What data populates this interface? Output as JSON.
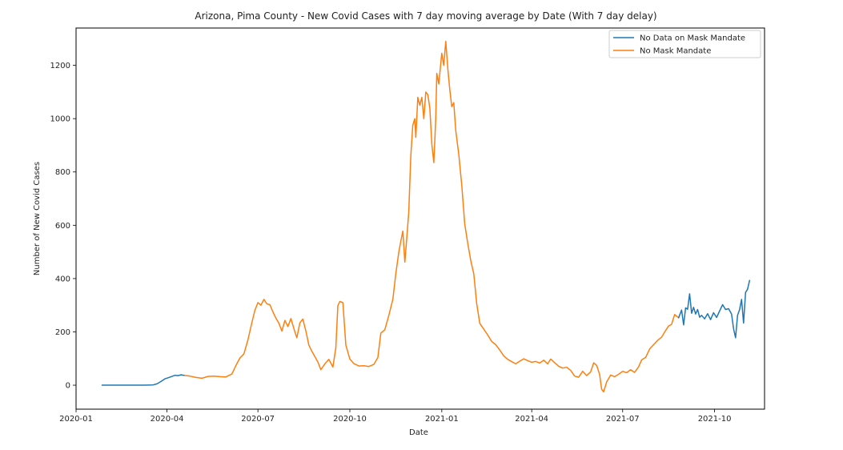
{
  "chart_data": {
    "type": "line",
    "title": "Arizona, Pima County - New Covid Cases with 7 day moving average by Date (With 7 day delay)",
    "xlabel": "Date",
    "ylabel": "Number of New Covid Cases",
    "x_type": "date",
    "xlim": [
      "2020-01-01",
      "2021-11-20"
    ],
    "ylim": [
      -90,
      1340
    ],
    "x_ticks": [
      "2020-01-01",
      "2020-04-01",
      "2020-07-01",
      "2020-10-01",
      "2021-01-01",
      "2021-04-01",
      "2021-07-01",
      "2021-10-01"
    ],
    "x_tick_labels": [
      "2020-01",
      "2020-04",
      "2020-07",
      "2020-10",
      "2021-01",
      "2021-04",
      "2021-07",
      "2021-10"
    ],
    "y_ticks": [
      0,
      200,
      400,
      600,
      800,
      1000,
      1200
    ],
    "y_tick_labels": [
      "0",
      "200",
      "400",
      "600",
      "800",
      "1000",
      "1200"
    ],
    "grid": false,
    "legend_position": "top-right",
    "series": [
      {
        "name": "No Data on Mask Mandate",
        "color": "#1f77b4",
        "segments": [
          [
            [
              "2020-01-27",
              0
            ],
            [
              "2020-02-10",
              0
            ],
            [
              "2020-02-25",
              0
            ],
            [
              "2020-03-10",
              0
            ],
            [
              "2020-03-18",
              1
            ],
            [
              "2020-03-22",
              5
            ],
            [
              "2020-03-26",
              14
            ],
            [
              "2020-03-30",
              24
            ],
            [
              "2020-04-03",
              29
            ],
            [
              "2020-04-06",
              33
            ],
            [
              "2020-04-09",
              37
            ],
            [
              "2020-04-12",
              36
            ],
            [
              "2020-04-15",
              39
            ],
            [
              "2020-04-18",
              37
            ]
          ],
          [
            [
              "2021-08-26",
              253
            ],
            [
              "2021-08-29",
              282
            ],
            [
              "2021-08-31",
              226
            ],
            [
              "2021-09-02",
              290
            ],
            [
              "2021-09-04",
              285
            ],
            [
              "2021-09-06",
              343
            ],
            [
              "2021-09-08",
              270
            ],
            [
              "2021-09-10",
              292
            ],
            [
              "2021-09-12",
              267
            ],
            [
              "2021-09-14",
              284
            ],
            [
              "2021-09-16",
              255
            ],
            [
              "2021-09-18",
              262
            ],
            [
              "2021-09-21",
              249
            ],
            [
              "2021-09-24",
              268
            ],
            [
              "2021-09-27",
              246
            ],
            [
              "2021-09-30",
              272
            ],
            [
              "2021-10-03",
              254
            ],
            [
              "2021-10-06",
              278
            ],
            [
              "2021-10-09",
              302
            ],
            [
              "2021-10-12",
              284
            ],
            [
              "2021-10-15",
              287
            ],
            [
              "2021-10-18",
              267
            ],
            [
              "2021-10-20",
              212
            ],
            [
              "2021-10-22",
              178
            ],
            [
              "2021-10-24",
              262
            ],
            [
              "2021-10-26",
              283
            ],
            [
              "2021-10-28",
              322
            ],
            [
              "2021-10-30",
              233
            ],
            [
              "2021-11-01",
              348
            ],
            [
              "2021-11-03",
              360
            ],
            [
              "2021-11-05",
              393
            ]
          ]
        ]
      },
      {
        "name": "No Mask Mandate",
        "color": "#ff7f0e",
        "segments": [
          [
            [
              "2020-04-18",
              37
            ],
            [
              "2020-04-24",
              34
            ],
            [
              "2020-04-30",
              29
            ],
            [
              "2020-05-06",
              26
            ],
            [
              "2020-05-12",
              33
            ],
            [
              "2020-05-18",
              34
            ],
            [
              "2020-05-24",
              32
            ],
            [
              "2020-05-30",
              31
            ],
            [
              "2020-06-05",
              42
            ],
            [
              "2020-06-09",
              74
            ],
            [
              "2020-06-13",
              102
            ],
            [
              "2020-06-17",
              118
            ],
            [
              "2020-06-21",
              170
            ],
            [
              "2020-06-25",
              236
            ],
            [
              "2020-06-28",
              281
            ],
            [
              "2020-07-01",
              310
            ],
            [
              "2020-07-04",
              300
            ],
            [
              "2020-07-07",
              322
            ],
            [
              "2020-07-10",
              305
            ],
            [
              "2020-07-13",
              302
            ],
            [
              "2020-07-16",
              275
            ],
            [
              "2020-07-19",
              252
            ],
            [
              "2020-07-22",
              232
            ],
            [
              "2020-07-25",
              203
            ],
            [
              "2020-07-28",
              243
            ],
            [
              "2020-07-31",
              220
            ],
            [
              "2020-08-03",
              250
            ],
            [
              "2020-08-06",
              212
            ],
            [
              "2020-08-09",
              178
            ],
            [
              "2020-08-12",
              234
            ],
            [
              "2020-08-15",
              248
            ],
            [
              "2020-08-18",
              203
            ],
            [
              "2020-08-21",
              150
            ],
            [
              "2020-08-24",
              127
            ],
            [
              "2020-08-27",
              107
            ],
            [
              "2020-08-30",
              87
            ],
            [
              "2020-09-02",
              58
            ],
            [
              "2020-09-06",
              80
            ],
            [
              "2020-09-10",
              97
            ],
            [
              "2020-09-14",
              68
            ],
            [
              "2020-09-17",
              140
            ],
            [
              "2020-09-19",
              298
            ],
            [
              "2020-09-21",
              314
            ],
            [
              "2020-09-24",
              310
            ],
            [
              "2020-09-27",
              150
            ],
            [
              "2020-10-01",
              98
            ],
            [
              "2020-10-05",
              81
            ],
            [
              "2020-10-10",
              72
            ],
            [
              "2020-10-15",
              73
            ],
            [
              "2020-10-20",
              70
            ],
            [
              "2020-10-25",
              78
            ],
            [
              "2020-10-29",
              104
            ],
            [
              "2020-11-01",
              195
            ],
            [
              "2020-11-05",
              208
            ],
            [
              "2020-11-09",
              262
            ],
            [
              "2020-11-13",
              322
            ],
            [
              "2020-11-16",
              418
            ],
            [
              "2020-11-19",
              500
            ],
            [
              "2020-11-21",
              541
            ],
            [
              "2020-11-23",
              578
            ],
            [
              "2020-11-25",
              462
            ],
            [
              "2020-11-27",
              552
            ],
            [
              "2020-11-29",
              650
            ],
            [
              "2020-12-01",
              858
            ],
            [
              "2020-12-03",
              975
            ],
            [
              "2020-12-05",
              1000
            ],
            [
              "2020-12-06",
              930
            ],
            [
              "2020-12-08",
              1080
            ],
            [
              "2020-12-10",
              1050
            ],
            [
              "2020-12-12",
              1080
            ],
            [
              "2020-12-14",
              1000
            ],
            [
              "2020-12-16",
              1100
            ],
            [
              "2020-12-18",
              1090
            ],
            [
              "2020-12-20",
              1040
            ],
            [
              "2020-12-22",
              904
            ],
            [
              "2020-12-24",
              835
            ],
            [
              "2020-12-26",
              1000
            ],
            [
              "2020-12-27",
              1170
            ],
            [
              "2020-12-29",
              1130
            ],
            [
              "2021-01-01",
              1245
            ],
            [
              "2021-01-03",
              1200
            ],
            [
              "2021-01-05",
              1290
            ],
            [
              "2021-01-07",
              1190
            ],
            [
              "2021-01-09",
              1110
            ],
            [
              "2021-01-11",
              1045
            ],
            [
              "2021-01-13",
              1060
            ],
            [
              "2021-01-15",
              955
            ],
            [
              "2021-01-18",
              865
            ],
            [
              "2021-01-21",
              750
            ],
            [
              "2021-01-24",
              605
            ],
            [
              "2021-01-27",
              532
            ],
            [
              "2021-01-30",
              468
            ],
            [
              "2021-02-02",
              418
            ],
            [
              "2021-02-05",
              305
            ],
            [
              "2021-02-08",
              232
            ],
            [
              "2021-02-12",
              210
            ],
            [
              "2021-02-16",
              188
            ],
            [
              "2021-02-20",
              164
            ],
            [
              "2021-02-24",
              152
            ],
            [
              "2021-02-28",
              132
            ],
            [
              "2021-03-04",
              110
            ],
            [
              "2021-03-08",
              97
            ],
            [
              "2021-03-12",
              88
            ],
            [
              "2021-03-16",
              80
            ],
            [
              "2021-03-20",
              90
            ],
            [
              "2021-03-24",
              99
            ],
            [
              "2021-03-28",
              92
            ],
            [
              "2021-04-01",
              86
            ],
            [
              "2021-04-05",
              89
            ],
            [
              "2021-04-09",
              83
            ],
            [
              "2021-04-13",
              94
            ],
            [
              "2021-04-17",
              80
            ],
            [
              "2021-04-20",
              98
            ],
            [
              "2021-04-24",
              84
            ],
            [
              "2021-04-28",
              71
            ],
            [
              "2021-05-02",
              64
            ],
            [
              "2021-05-06",
              67
            ],
            [
              "2021-05-10",
              55
            ],
            [
              "2021-05-14",
              34
            ],
            [
              "2021-05-18",
              30
            ],
            [
              "2021-05-22",
              52
            ],
            [
              "2021-05-26",
              36
            ],
            [
              "2021-05-30",
              50
            ],
            [
              "2021-06-02",
              84
            ],
            [
              "2021-06-05",
              74
            ],
            [
              "2021-06-08",
              40
            ],
            [
              "2021-06-10",
              -15
            ],
            [
              "2021-06-12",
              -25
            ],
            [
              "2021-06-15",
              12
            ],
            [
              "2021-06-19",
              38
            ],
            [
              "2021-06-23",
              32
            ],
            [
              "2021-06-27",
              41
            ],
            [
              "2021-07-01",
              52
            ],
            [
              "2021-07-05",
              47
            ],
            [
              "2021-07-09",
              58
            ],
            [
              "2021-07-13",
              48
            ],
            [
              "2021-07-17",
              69
            ],
            [
              "2021-07-20",
              95
            ],
            [
              "2021-07-24",
              104
            ],
            [
              "2021-07-28",
              136
            ],
            [
              "2021-08-01",
              152
            ],
            [
              "2021-08-05",
              168
            ],
            [
              "2021-08-09",
              180
            ],
            [
              "2021-08-13",
              205
            ],
            [
              "2021-08-16",
              222
            ],
            [
              "2021-08-19",
              228
            ],
            [
              "2021-08-22",
              265
            ],
            [
              "2021-08-26",
              253
            ]
          ]
        ]
      }
    ]
  }
}
